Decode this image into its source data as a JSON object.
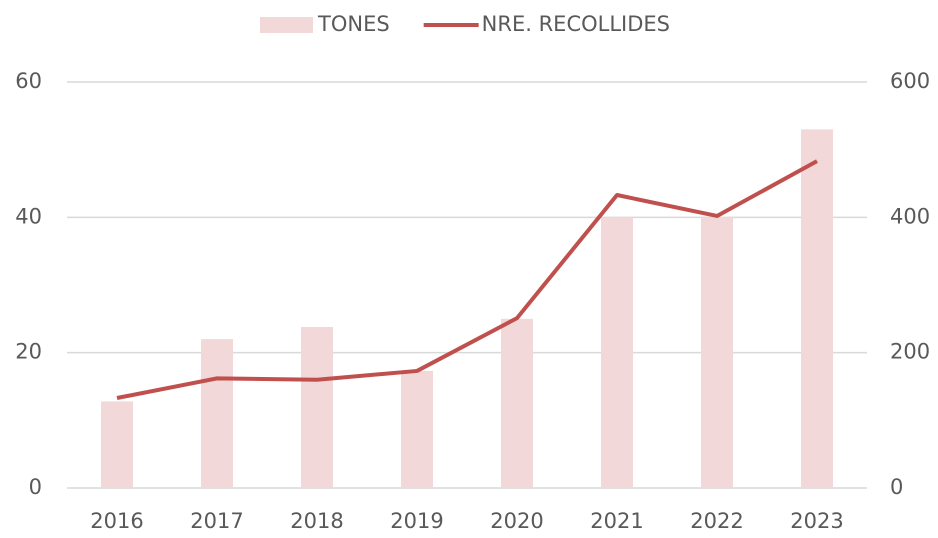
{
  "chart_data": {
    "type": "bar-line",
    "categories": [
      "2016",
      "2017",
      "2018",
      "2019",
      "2020",
      "2021",
      "2022",
      "2023"
    ],
    "series": [
      {
        "name": "TONES",
        "type": "bar",
        "color": "#f2d8d8",
        "values": [
          12.8,
          22,
          23.8,
          17.3,
          25,
          40,
          40,
          53
        ]
      },
      {
        "name": "NRE. RECOLLIDES",
        "type": "line",
        "axis": "y2",
        "color": "#c0504d",
        "values": [
          133,
          162,
          160,
          173,
          251,
          433,
          402,
          483
        ]
      }
    ],
    "ylim": [
      0,
      60
    ],
    "yticks": [
      0,
      20,
      40,
      60
    ],
    "y2lim": [
      0,
      600
    ],
    "y2ticks": [
      0,
      200,
      400,
      600
    ],
    "grid": true,
    "legend": "top"
  }
}
